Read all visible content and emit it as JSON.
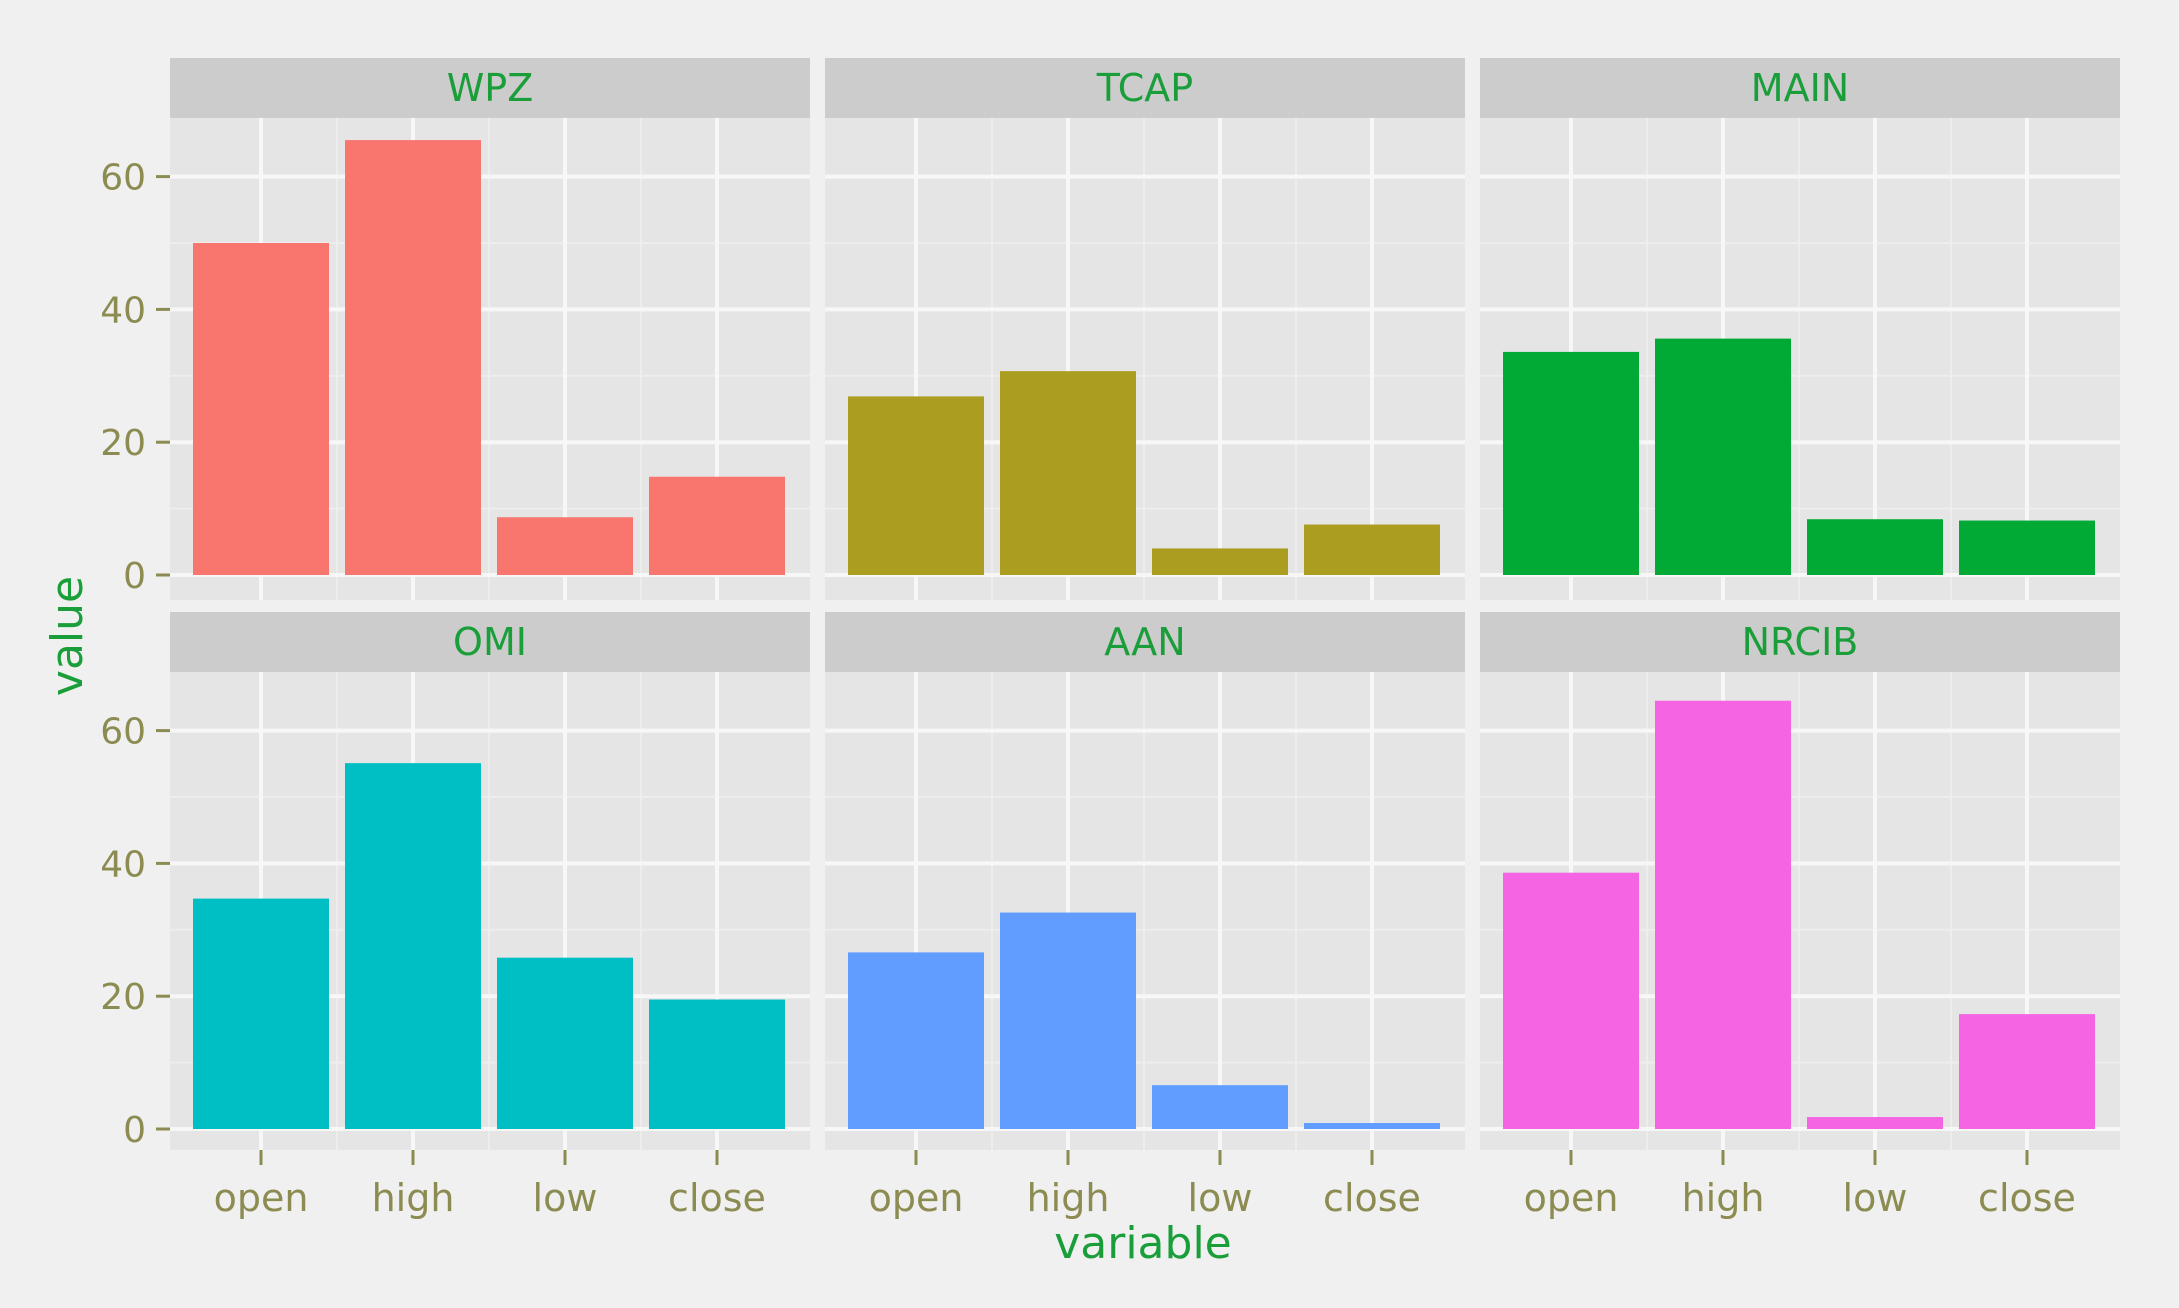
{
  "chart_data": {
    "type": "bar",
    "xlabel": "variable",
    "ylabel": "value",
    "categories": [
      "open",
      "high",
      "low",
      "close"
    ],
    "yticks": [
      0,
      20,
      40,
      60
    ],
    "ylim": [
      -3.3,
      69
    ],
    "grid": true,
    "facets": [
      {
        "name": "WPZ",
        "color": "#f8766d",
        "values": [
          50.0,
          65.5,
          8.7,
          14.8
        ]
      },
      {
        "name": "TCAP",
        "color": "#ab9d1f",
        "values": [
          26.9,
          30.7,
          4.0,
          7.6
        ]
      },
      {
        "name": "MAIN",
        "color": "#00aa35",
        "values": [
          33.6,
          35.6,
          8.4,
          8.2
        ]
      },
      {
        "name": "OMI",
        "color": "#00bfc4",
        "values": [
          34.7,
          55.1,
          25.8,
          19.5
        ]
      },
      {
        "name": "AAN",
        "color": "#619cff",
        "values": [
          26.6,
          32.6,
          6.6,
          0.9
        ]
      },
      {
        "name": "NRCIB",
        "color": "#f564e3",
        "values": [
          38.6,
          64.5,
          1.8,
          17.3
        ]
      }
    ]
  },
  "colors": {
    "background": "#f0f0f0",
    "panel": "#e5e5e5",
    "strip": "#cccccc",
    "grid_major": "#f7f7f7",
    "grid_minor": "#ededed",
    "tick_text": "#8c8c52",
    "title_text": "#1a9e3a"
  }
}
